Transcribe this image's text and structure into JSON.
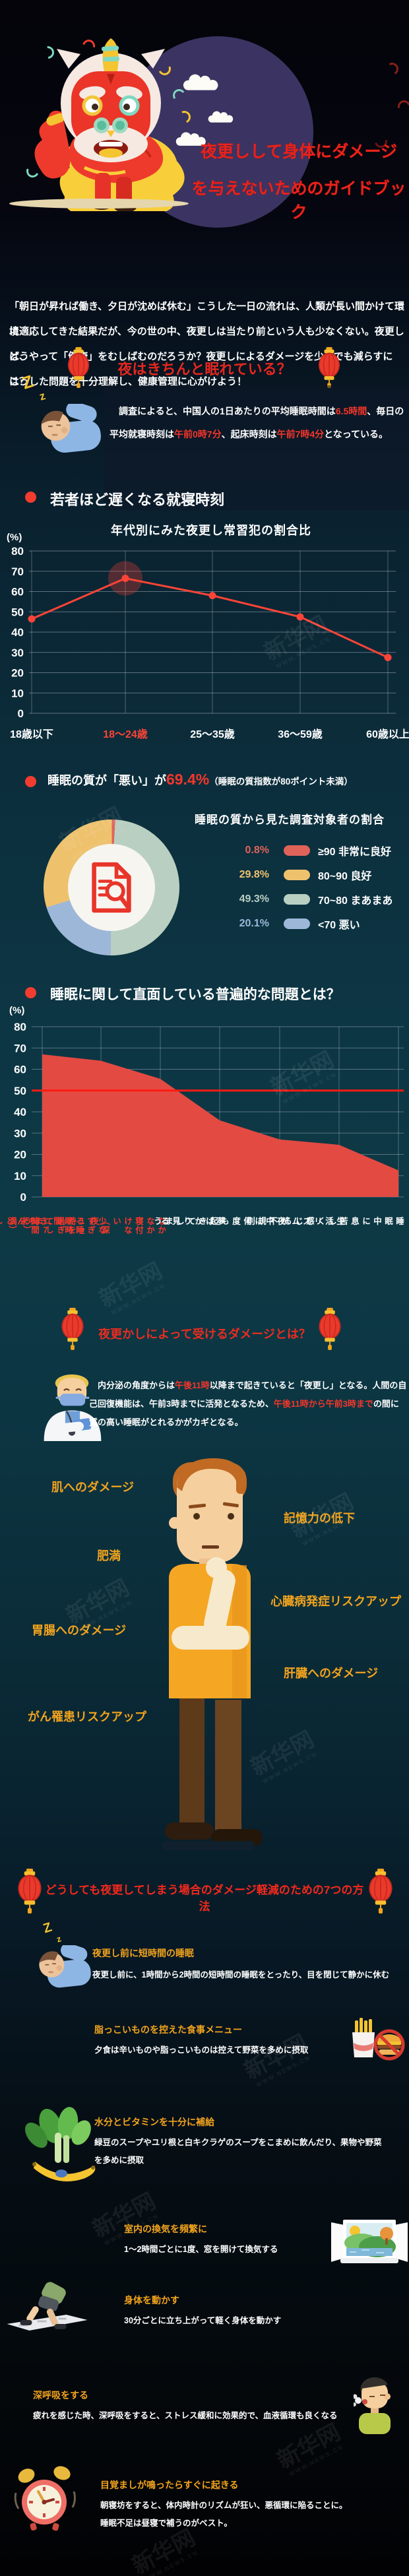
{
  "watermark": {
    "name": "新华网",
    "url": "WWW.NEWS.CN"
  },
  "hero": {
    "title_line1": "夜更しして身体にダメージ",
    "title_line2": "を与えないためのガイドブック"
  },
  "intro": {
    "lines": [
      "「朝日が昇れば働き、夕日が沈めば休む」こうした一日の流れは、人類が長い間かけて環境",
      "に適応してきた結果だが、今の世の中、夜更しは当たり前という人も少なくない。夜更しは、",
      "どうやって「健康」をむしばむのだろうか？夜更しによるダメージを少しでも減らすには？",
      "こうした問題を十分理解し、健康管理に心がけよう！"
    ]
  },
  "sleep_section": {
    "heading": "夜はきちんと眠れている？",
    "zzz_large": "Z",
    "zzz_small": "z",
    "survey_segments": [
      {
        "t": "　調査によると、中国人の1日あたりの平均睡眠時間は"
      },
      {
        "t": "6.5時間",
        "c": "red"
      },
      {
        "t": "、毎日の平均就寝時刻は"
      },
      {
        "t": "午前0時7分",
        "c": "red"
      },
      {
        "t": "、起床時刻は"
      },
      {
        "t": "午前7時4分",
        "c": "red"
      },
      {
        "t": "となっている。"
      }
    ]
  },
  "bedtime_section": {
    "heading": "若者ほど遅くなる就寝時刻"
  },
  "quality_section": {
    "heading_pre": "睡眠の質が「悪い」が",
    "heading_pct": "69.4%",
    "heading_paren": "（睡眠の質指数が80ポイント未満）",
    "subtitle": "睡眠の質から見た調査対象者の割合"
  },
  "problems_section": {
    "heading": "睡眠に関して直面している普遍的な問題とは？"
  },
  "damage_section": {
    "heading": "夜更かしによって受けるダメージとは？",
    "doctor_segments": [
      {
        "t": "　内分泌の角度からは"
      },
      {
        "t": "午後11時",
        "c": "red"
      },
      {
        "t": "以降まで起きていると「夜更し」となる。人間の自己回復機能は、午前3時までに活発となるため、"
      },
      {
        "t": "午後11時から午前3時まで",
        "c": "red"
      },
      {
        "t": "の間に質の高い睡眠がとれるかがカギとなる。"
      }
    ],
    "labels": [
      "肌へのダメージ",
      "記憶力の低下",
      "肥満",
      "心臓病発症リスクアップ",
      "胃腸へのダメージ",
      "肝臓へのダメージ",
      "がん罹患リスクアップ"
    ]
  },
  "tips_section": {
    "heading": "どうしても夜更してしまう場合のダメージ軽減のための7つの方法",
    "tips": [
      {
        "title": "夜更し前に短時間の睡眠",
        "body": "夜更し前に、1時間から2時間の短時間の睡眠をとったり、目を閉じて静かに休む"
      },
      {
        "title": "脂っこいものを控えた食事メニュー",
        "body": "夕食は辛いものや脂っこいものは控えて野菜を多めに摂取"
      },
      {
        "title": "水分とビタミンを十分に補給",
        "body": "緑豆のスープやユリ根と白キクラゲのスープをこまめに飲んだり、果物や野菜\nを多めに摂取"
      },
      {
        "title": "室内の換気を頻繁に",
        "body": "1〜2時間ごとに1度、窓を開けて換気する"
      },
      {
        "title": "身体を動かす",
        "body": "30分ごとに立ち上がって軽く身体を動かす"
      },
      {
        "title": "深呼吸をする",
        "body": "疲れを感じた時、深呼吸をすると、ストレス緩和に効果的で、血液循環も良くなる"
      },
      {
        "title": "目覚ましが鳴ったらすぐに起きる",
        "body": "朝寝坊をすると、体内時計のリズムが狂い、悪循環に陥ることに。\n睡眠不足は昼寝で補うのがベスト。"
      }
    ]
  },
  "icons": {
    "lion-dance-icon": "svg-shape",
    "moon-icon": "circle",
    "cloud-icon": "svg-shape",
    "lantern-icon": "svg-shape",
    "zzz-icon": "text-Z",
    "sleeping-person-icon": "svg-shape",
    "document-magnifier-icon": "svg-shape",
    "doctor-icon": "svg-shape",
    "thinking-man-icon": "svg-shape",
    "fries-burger-ban-icon": "svg-shape",
    "vegetables-icon": "svg-shape",
    "open-window-icon": "svg-shape",
    "walking-person-icon": "svg-shape",
    "breathing-face-icon": "svg-shape",
    "alarm-clock-icon": "svg-shape",
    "red-dot-bullet": "circle"
  },
  "chart_data": [
    {
      "type": "line",
      "title": "年代別にみた夜更し常習犯の割合比",
      "xlabel": "年代",
      "ylabel": "(%)",
      "ylim": [
        0,
        80
      ],
      "ytick_step": 10,
      "grid": true,
      "categories": [
        "18歳以下",
        "18〜24歳",
        "25〜35歳",
        "36〜59歳",
        "60歳以上"
      ],
      "values": [
        46.5,
        66.5,
        58,
        47.5,
        27.5
      ],
      "highlight_index": 1,
      "line_color": "#fb4437"
    },
    {
      "type": "pie",
      "subtype": "donut",
      "title": "睡眠の質から見た調査対象者の割合",
      "legend_position": "right",
      "slices": [
        {
          "pct_label": "0.8%",
          "value": 0.8,
          "range": "≥90",
          "desc": "非常に良好",
          "color": "#e0635a"
        },
        {
          "pct_label": "29.8%",
          "value": 29.8,
          "range": "80~90",
          "desc": "良好",
          "color": "#eec26d"
        },
        {
          "pct_label": "49.3%",
          "value": 49.3,
          "range": "70~80",
          "desc": "まあまあ",
          "color": "#b9cfc1"
        },
        {
          "pct_label": "20.1%",
          "value": 20.1,
          "range": "<70",
          "desc": "悪い",
          "color": "#9db7d9"
        }
      ]
    },
    {
      "type": "area",
      "title": "睡眠に関して直面している普遍的な問題とは？",
      "ylabel": "(%)",
      "ylim": [
        0,
        80
      ],
      "ytick_step": 10,
      "grid": true,
      "categories": [
        "きちんとした睡眠の不足",
        "少なすぎる睡眠時間\n（7時間未満）",
        "なかなか寝付けない\n（深夜12時を過ぎてしまう）",
        "夢ばかり見る",
        "夜中に何度も起きてしまう",
        "生活リズムが不規則",
        "睡眠中に息苦しく感じる"
      ],
      "values": [
        67,
        64,
        55.5,
        36,
        27,
        24.5,
        12.5
      ],
      "ref_line": 50,
      "red_label_count": 3,
      "fill_color": "#e34a42"
    }
  ]
}
